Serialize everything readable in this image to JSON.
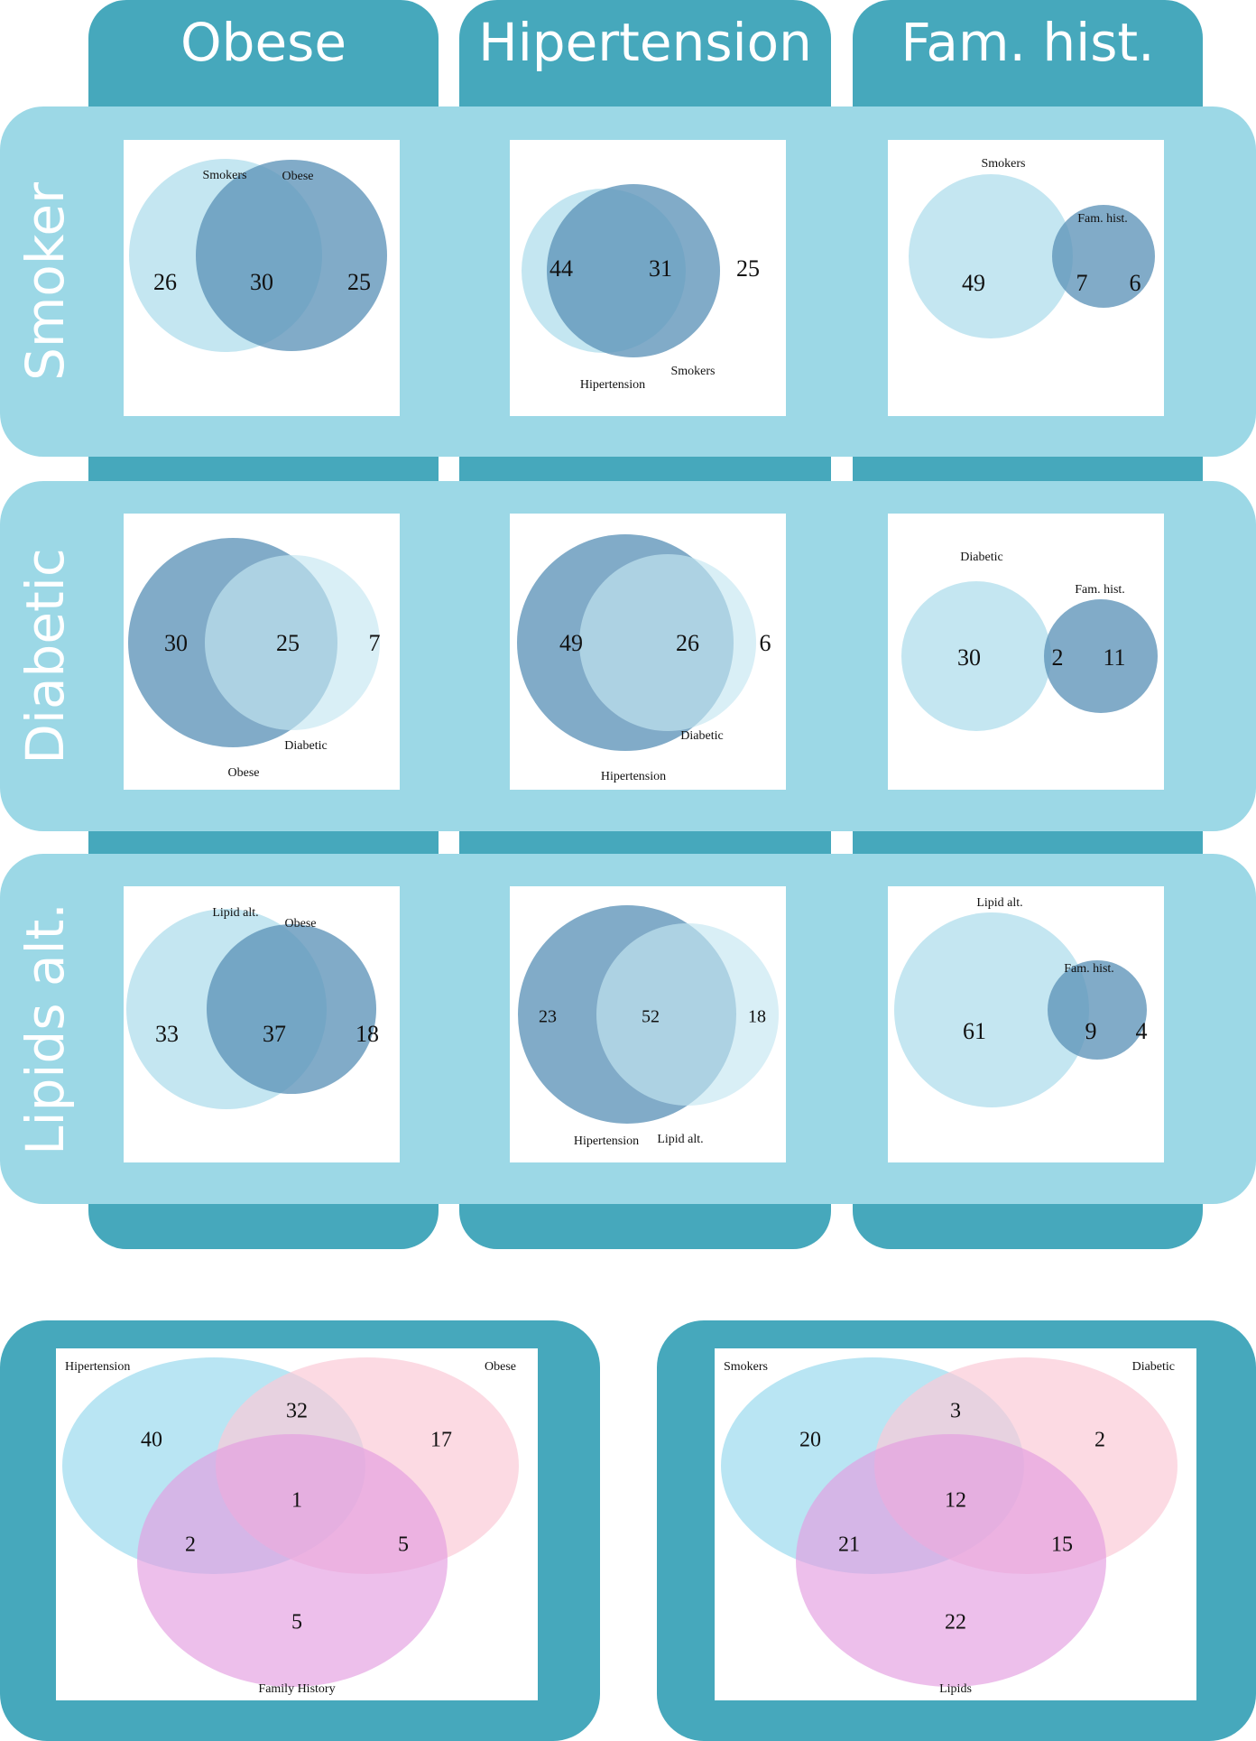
{
  "column_headers": [
    "Obese",
    "Hipertension",
    "Fam. hist."
  ],
  "row_headers": [
    "Smoker",
    "Diabetic",
    "Lipids alt."
  ],
  "colors": {
    "header_tab": "#46a8bc",
    "row_band": "#9cd8e6",
    "circle_light": "#c4e6f1",
    "circle_dark": "#5d94b8",
    "three_set_blue": "#a8dff0",
    "three_set_pink": "#fbcad7",
    "three_set_magenta": "#e49de0"
  },
  "chart_data": [
    {
      "type": "venn2",
      "row": "Smoker",
      "column": "Obese",
      "sets": [
        "Smokers",
        "Obese"
      ],
      "regions": {
        "only_a": 26,
        "both": 30,
        "only_b": 25
      }
    },
    {
      "type": "venn2",
      "row": "Smoker",
      "column": "Hipertension",
      "sets": [
        "Hipertension",
        "Smokers"
      ],
      "regions": {
        "only_a": 44,
        "both": 31,
        "only_b": 25
      }
    },
    {
      "type": "venn2",
      "row": "Smoker",
      "column": "Fam. hist.",
      "sets": [
        "Smokers",
        "Fam. hist."
      ],
      "regions": {
        "only_a": 49,
        "both": 7,
        "only_b": 6
      }
    },
    {
      "type": "venn2",
      "row": "Diabetic",
      "column": "Obese",
      "sets": [
        "Obese",
        "Diabetic"
      ],
      "regions": {
        "only_a": 30,
        "both": 25,
        "only_b": 7
      }
    },
    {
      "type": "venn2",
      "row": "Diabetic",
      "column": "Hipertension",
      "sets": [
        "Hipertension",
        "Diabetic"
      ],
      "regions": {
        "only_a": 49,
        "both": 26,
        "only_b": 6
      }
    },
    {
      "type": "venn2",
      "row": "Diabetic",
      "column": "Fam. hist.",
      "sets": [
        "Diabetic",
        "Fam. hist."
      ],
      "regions": {
        "only_a": 30,
        "both": 2,
        "only_b": 11
      }
    },
    {
      "type": "venn2",
      "row": "Lipids alt.",
      "column": "Obese",
      "sets": [
        "Lipid alt.",
        "Obese"
      ],
      "regions": {
        "only_a": 33,
        "both": 37,
        "only_b": 18
      }
    },
    {
      "type": "venn2",
      "row": "Lipids alt.",
      "column": "Hipertension",
      "sets": [
        "Hipertension",
        "Lipid alt."
      ],
      "regions": {
        "only_a": 23,
        "both": 52,
        "only_b": 18
      }
    },
    {
      "type": "venn2",
      "row": "Lipids alt.",
      "column": "Fam. hist.",
      "sets": [
        "Lipid alt.",
        "Fam. hist."
      ],
      "regions": {
        "only_a": 61,
        "both": 9,
        "only_b": 4
      }
    },
    {
      "type": "venn3",
      "sets": [
        "Hipertension",
        "Obese",
        "Family History"
      ],
      "regions": {
        "a_only": 40,
        "ab": 32,
        "b_only": 17,
        "abc": 1,
        "ac": 2,
        "bc": 5,
        "c_only": 5
      }
    },
    {
      "type": "venn3",
      "sets": [
        "Smokers",
        "Diabetic",
        "Lipids"
      ],
      "regions": {
        "a_only": 20,
        "ab": 3,
        "b_only": 2,
        "abc": 12,
        "ac": 21,
        "bc": 15,
        "c_only": 22
      }
    }
  ]
}
